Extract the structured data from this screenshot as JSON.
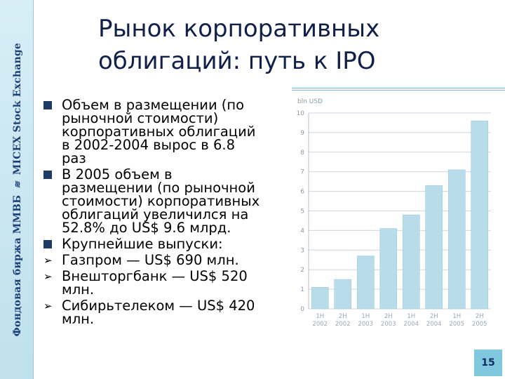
{
  "sidebar": {
    "text_left": "Фондовая биржа ММВБ",
    "text_right": "MICEX Stock Exchange",
    "logo_icon": "micex-wave-icon"
  },
  "header": {
    "title_line1": "Рынок корпоративных",
    "title_line2": "облигаций: путь к IPO"
  },
  "bullets": [
    {
      "marker": "square",
      "lines": [
        "Объем в размещении (по",
        "рыночной стоимости)",
        "корпоративных облигаций",
        "в 2002-2004 вырос в 6.8",
        "раз"
      ]
    },
    {
      "marker": "square",
      "lines": [
        "В 2005 объем в",
        "размещении (по рыночной",
        "стоимости) корпоративных",
        "облигаций увеличился на",
        "52.8% до US$ 9.6 млрд."
      ]
    },
    {
      "marker": "square",
      "lines": [
        "Крупнейшие выпуски:"
      ]
    },
    {
      "marker": "arrow",
      "lines": [
        "Газпром — US$ 690 млн."
      ]
    },
    {
      "marker": "arrow",
      "lines": [
        "Внешторгбанк — US$ 520",
        "млн."
      ]
    },
    {
      "marker": "arrow",
      "lines": [
        "Сибирьтелеком — US$ 420",
        "млн."
      ]
    }
  ],
  "footer": {
    "page_number": "15"
  },
  "chart_data": {
    "type": "bar",
    "ylabel": "bln USD",
    "ylim": [
      0,
      10
    ],
    "yticks": [
      "0",
      "1",
      "2",
      "3",
      "4",
      "5",
      "6",
      "7",
      "8",
      "9",
      "10"
    ],
    "categories": [
      {
        "half": "1H",
        "year": "2002"
      },
      {
        "half": "2H",
        "year": "2002"
      },
      {
        "half": "1H",
        "year": "2003"
      },
      {
        "half": "2H",
        "year": "2003"
      },
      {
        "half": "1H",
        "year": "2004"
      },
      {
        "half": "2H",
        "year": "2004"
      },
      {
        "half": "1H",
        "year": "2005"
      },
      {
        "half": "2H",
        "year": "2005"
      }
    ],
    "values": [
      1.1,
      1.5,
      2.7,
      4.1,
      4.8,
      6.3,
      7.1,
      9.6
    ],
    "bar_color": "#b9dceb",
    "grid": true
  }
}
